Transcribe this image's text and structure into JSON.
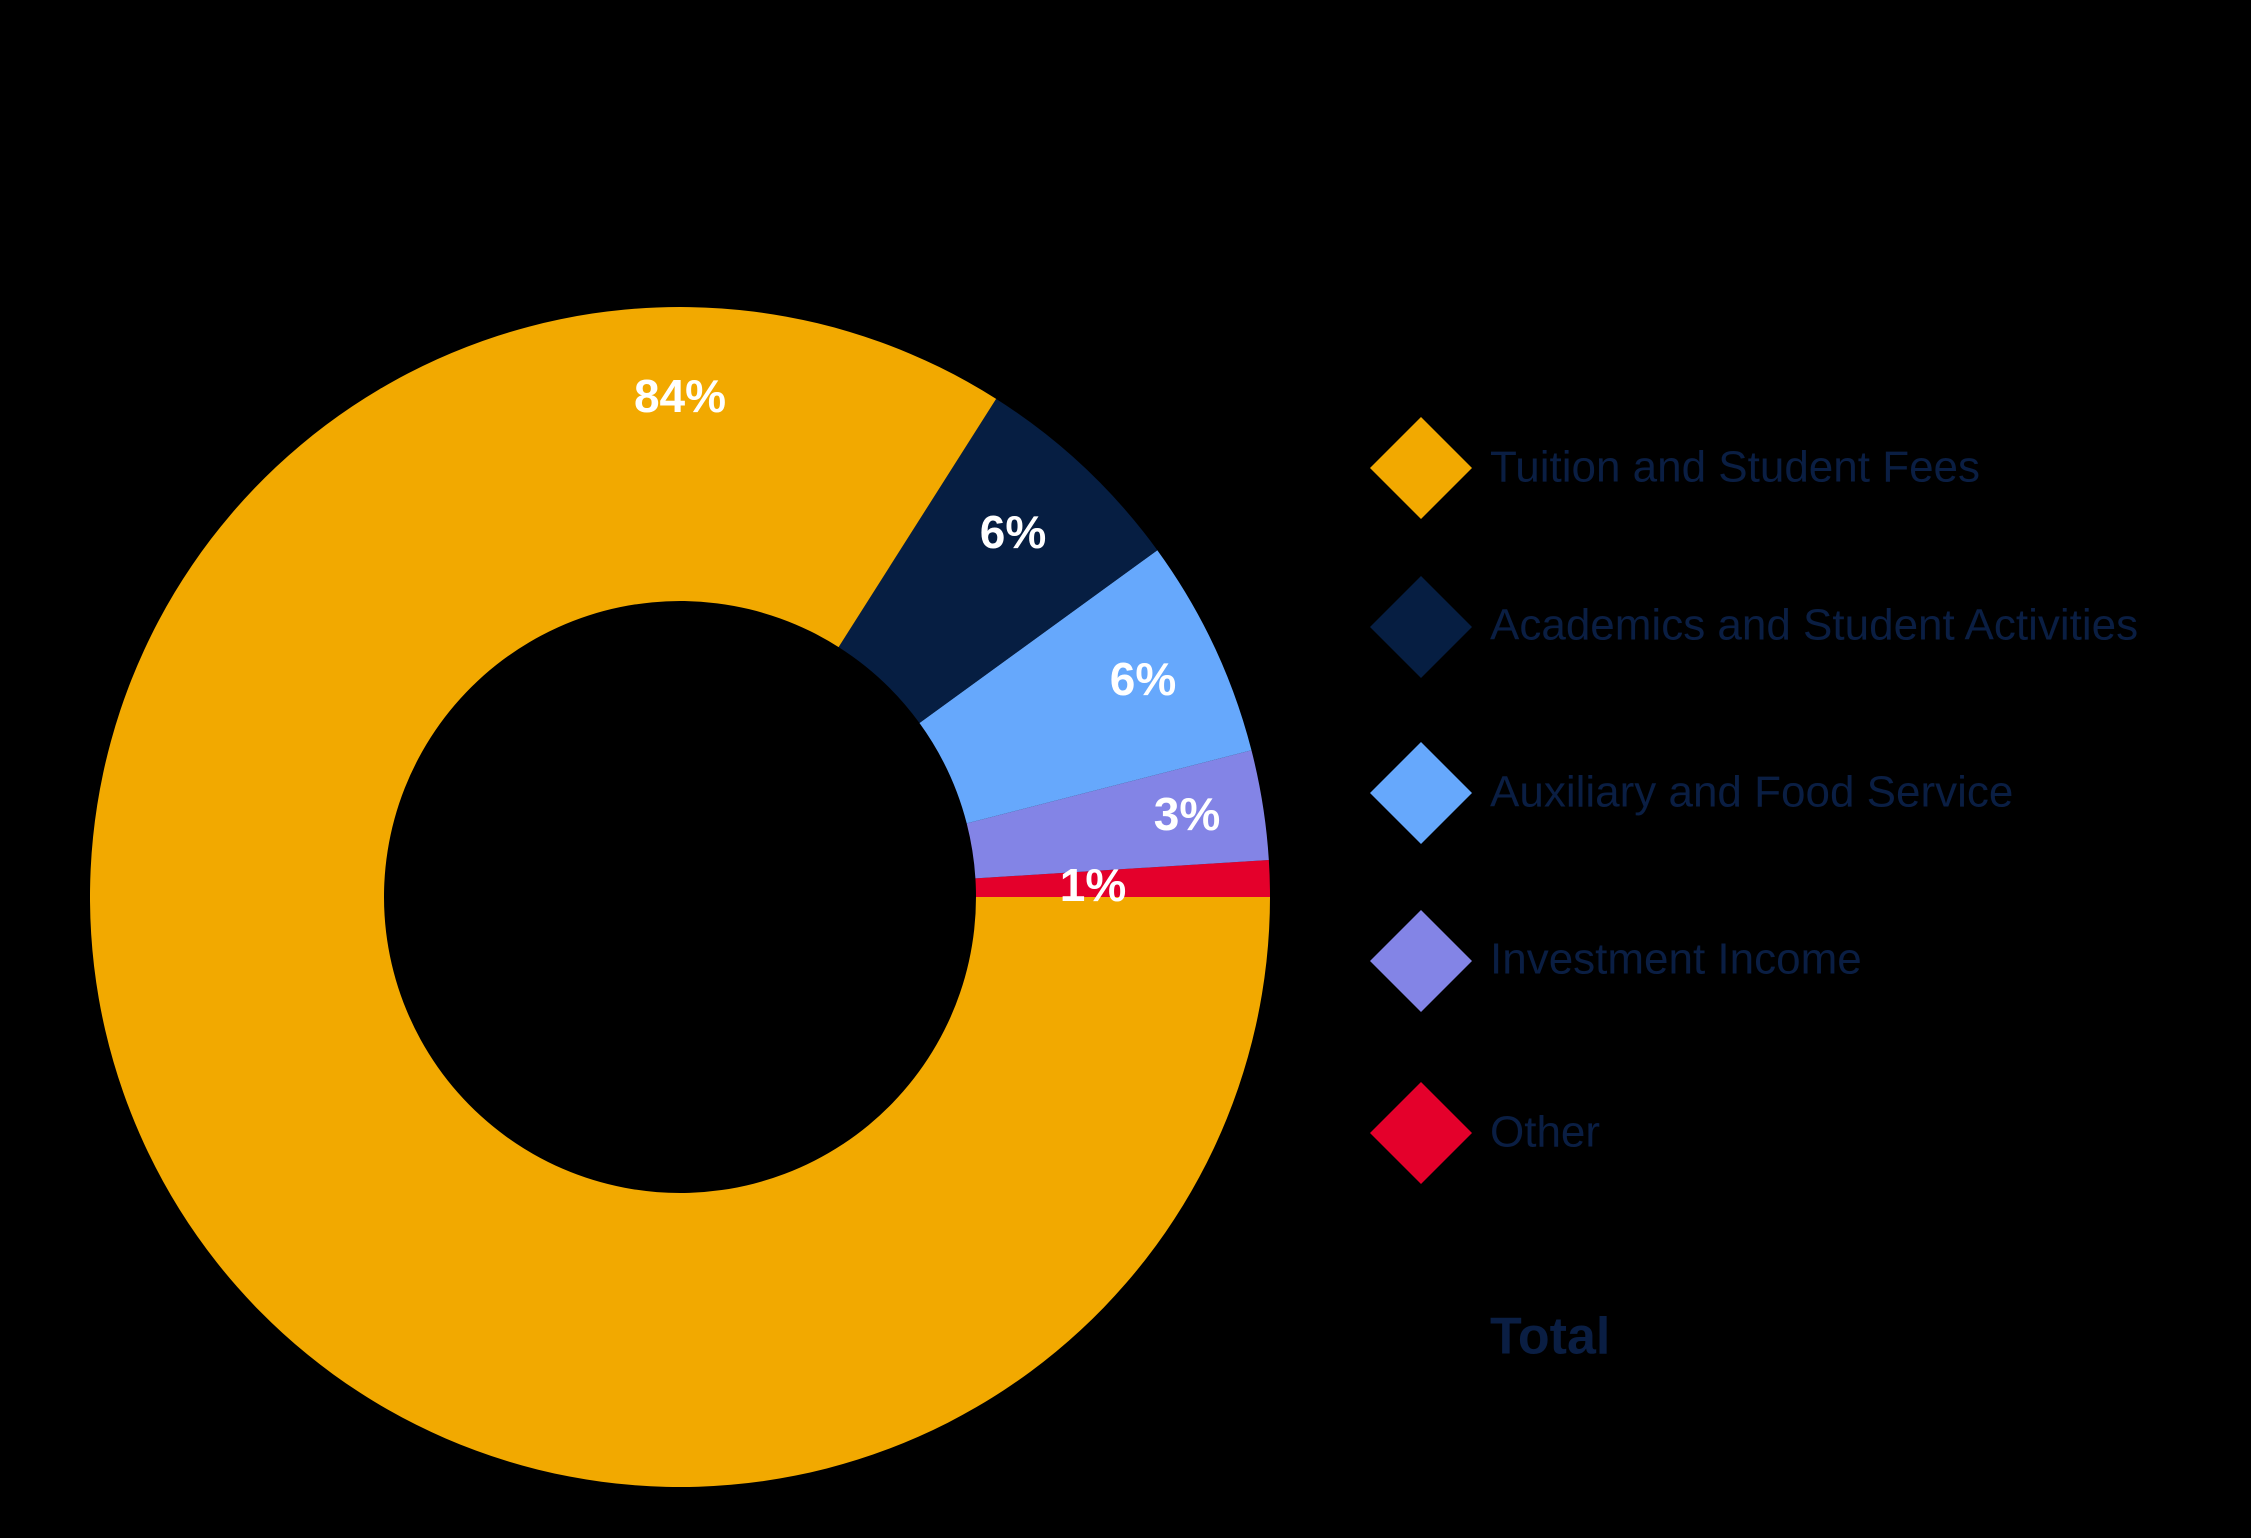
{
  "chart_data": {
    "type": "pie",
    "donut": true,
    "series": [
      {
        "name": "Tuition and Student Fees",
        "value": 84,
        "label": "84%",
        "color": "#f2a900"
      },
      {
        "name": "Academics and Student Activities",
        "value": 6,
        "label": "6%",
        "color": "#061e42"
      },
      {
        "name": "Auxiliary and Food Service",
        "value": 6,
        "label": "6%",
        "color": "#66a8fc"
      },
      {
        "name": "Investment Income",
        "value": 3,
        "label": "3%",
        "color": "#8384e6"
      },
      {
        "name": "Other",
        "value": 1,
        "label": "1%",
        "color": "#e4002b"
      }
    ],
    "legend_position": "right",
    "legend_total_label": "Total"
  }
}
